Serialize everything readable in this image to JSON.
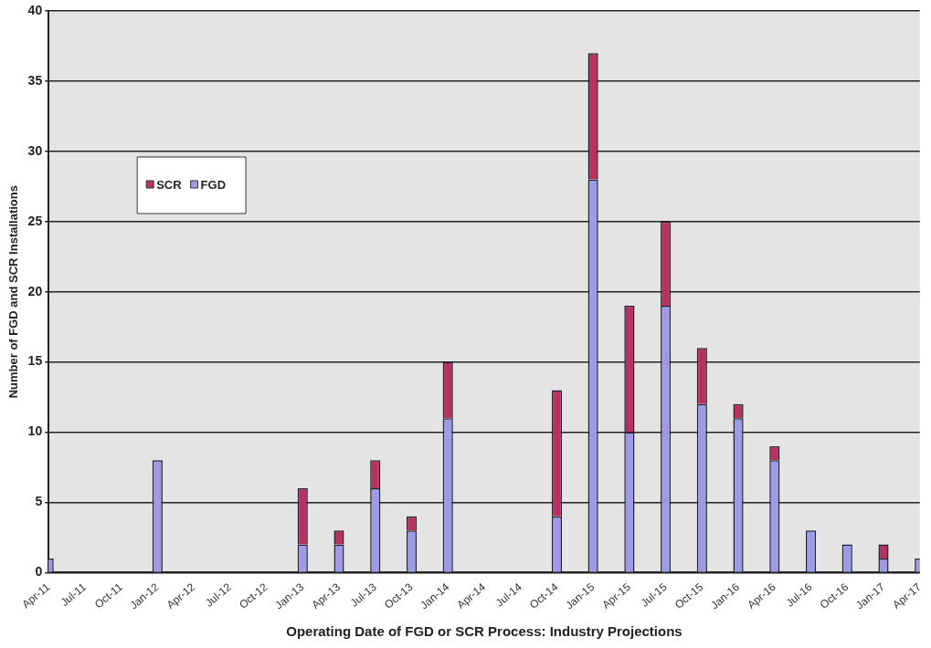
{
  "chart_data": {
    "type": "bar",
    "stacked": true,
    "xlabel": "Operating Date of FGD or SCR Process: Industry Projections",
    "ylabel": "Number of FGD and SCR Installations",
    "categories": [
      "Apr-11",
      "Jul-11",
      "Oct-11",
      "Jan-12",
      "Apr-12",
      "Jul-12",
      "Oct-12",
      "Jan-13",
      "Apr-13",
      "Jul-13",
      "Oct-13",
      "Jan-14",
      "Apr-14",
      "Jul-14",
      "Oct-14",
      "Jan-15",
      "Apr-15",
      "Jul-15",
      "Oct-15",
      "Jan-16",
      "Apr-16",
      "Jul-16",
      "Oct-16",
      "Jan-17",
      "Apr-17"
    ],
    "series": [
      {
        "name": "FGD",
        "color": "#9d9ae6",
        "values": [
          1,
          0,
          0,
          8,
          0,
          0,
          0,
          2,
          2,
          6,
          3,
          11,
          0,
          0,
          4,
          28,
          10,
          19,
          12,
          11,
          8,
          3,
          2,
          1,
          1
        ]
      },
      {
        "name": "SCR",
        "color": "#b8325e",
        "values": [
          0,
          0,
          0,
          0,
          0,
          0,
          0,
          4,
          1,
          2,
          1,
          4,
          0,
          0,
          9,
          9,
          9,
          6,
          4,
          1,
          1,
          0,
          0,
          1,
          0
        ]
      }
    ],
    "ylim": [
      0,
      40
    ],
    "yticks": [
      0,
      5,
      10,
      15,
      20,
      25,
      30,
      35,
      40
    ],
    "grid": "y",
    "legend": "top left"
  }
}
